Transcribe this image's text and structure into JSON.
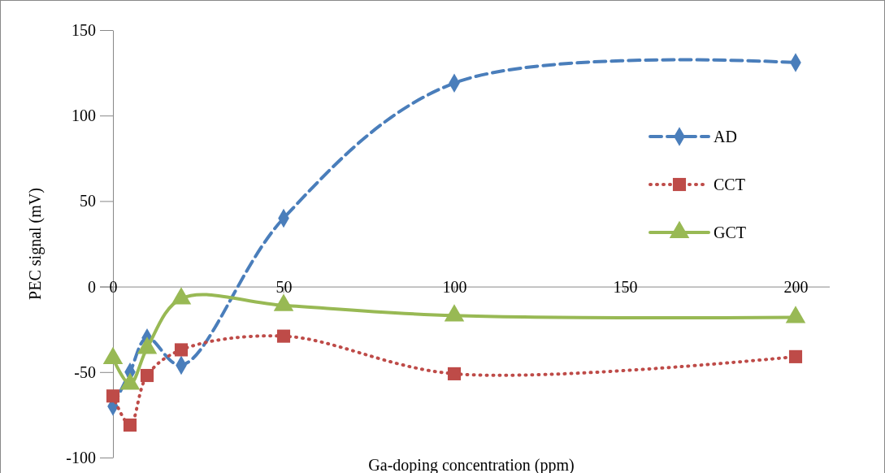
{
  "chart_data": {
    "type": "line",
    "xlabel": "Ga-doping concentration (ppm)",
    "ylabel": "PEC signal (mV)",
    "x": [
      0,
      5,
      10,
      20,
      50,
      100,
      200
    ],
    "series": [
      {
        "name": "AD",
        "color": "#4a7ebb",
        "values": [
          -70,
          -50,
          -30,
          -46,
          40,
          119,
          131
        ],
        "marker": "diamond",
        "line_style": "dashed"
      },
      {
        "name": "CCT",
        "color": "#be4b48",
        "values": [
          -64,
          -81,
          -52,
          -37,
          -29,
          -51,
          -41
        ],
        "marker": "square",
        "line_style": "dotted"
      },
      {
        "name": "GCT",
        "color": "#98b954",
        "values": [
          -42,
          -57,
          -36,
          -7,
          -11,
          -17,
          -18
        ],
        "marker": "triangle",
        "line_style": "solid"
      }
    ],
    "xlim": [
      0,
      210
    ],
    "xticks": [
      0,
      50,
      100,
      150,
      200
    ],
    "ylim": [
      -100,
      150
    ],
    "yticks": [
      -100,
      -50,
      0,
      50,
      100,
      150
    ],
    "grid": false,
    "legend": "right"
  }
}
